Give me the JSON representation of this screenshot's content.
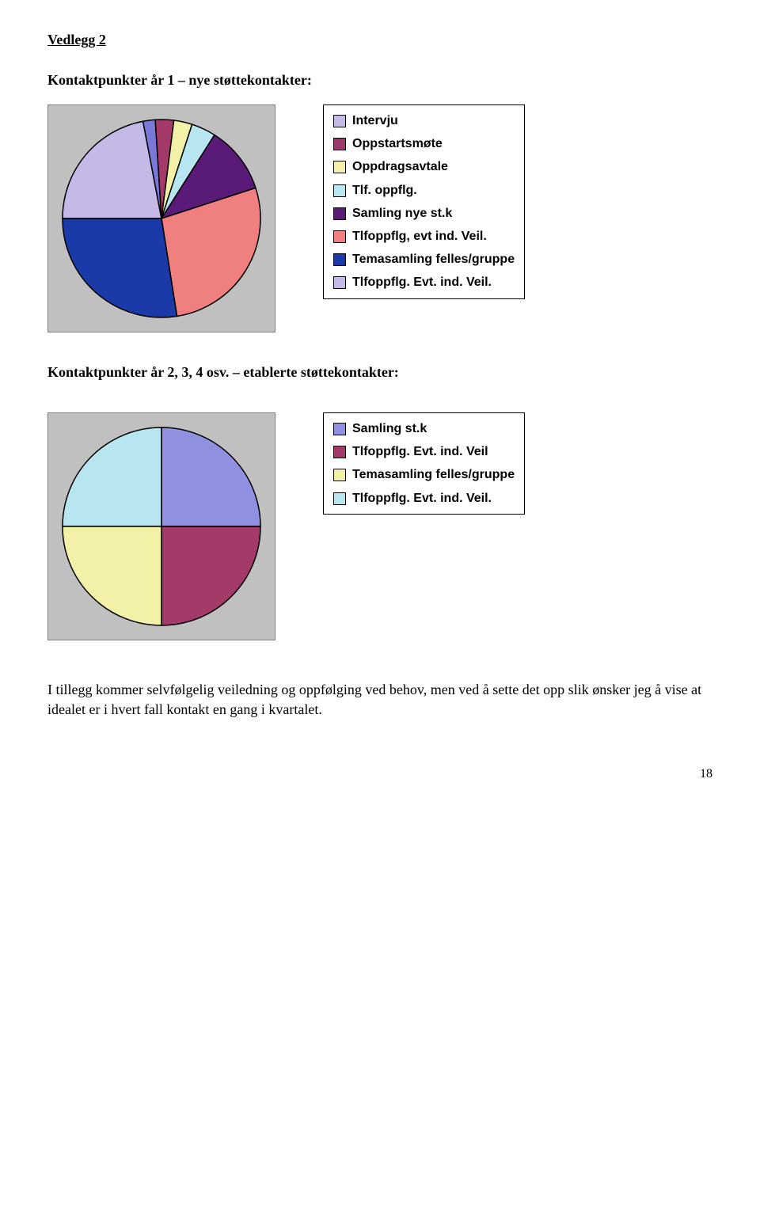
{
  "title": "Vedlegg 2",
  "section1": {
    "heading": "Kontaktpunkter år 1 – nye støttekontakter:",
    "chart": {
      "type": "pie",
      "background_color": "#c0c0c0",
      "border_color": "#808080",
      "slice_border": "#000000",
      "slices": [
        {
          "label": "Intervju",
          "value": 22,
          "color": "#c5b9e8"
        },
        {
          "label": "Oppstartsmøte",
          "value": 2,
          "color": "#7878d6"
        },
        {
          "label": "Oppdragsavtale",
          "value": 3,
          "color": "#a33a6a"
        },
        {
          "label": "Tlf. oppflg.",
          "value": 3,
          "color": "#f3f0a8"
        },
        {
          "label": "Samling nye st.k",
          "value": 4,
          "color": "#b8e6f0"
        },
        {
          "label": "Tlfoppflg, evt ind. Veil.",
          "value": 11,
          "color": "#5a1a78"
        },
        {
          "label": "Temasamling felles/gruppe",
          "value": 27.5,
          "color": "#f08080"
        },
        {
          "label": "Tlfoppflg. Evt. ind. Veil.",
          "value": 27.5,
          "color": "#1a3aa8"
        }
      ]
    },
    "legend_swatch_colors": {
      "Intervju": "#c5b9e8",
      "Oppstartsmøte": "#9a3a6a",
      "Oppdragsavtale": "#f3f0a8",
      "Tlf. oppflg.": "#b8e6f0",
      "Samling nye st.k": "#5a1a78",
      "Tlfoppflg, evt ind. Veil.": "#f08080",
      "Temasamling felles/gruppe": "#1a3aa8",
      "Tlfoppflg. Evt. ind. Veil.": "#c5b9e8"
    }
  },
  "section2": {
    "heading": "Kontaktpunkter år 2, 3, 4 osv. – etablerte støttekontakter:",
    "chart": {
      "type": "pie",
      "background_color": "#c0c0c0",
      "border_color": "#808080",
      "slice_border": "#000000",
      "slices": [
        {
          "label": "Samling st.k",
          "value": 25,
          "color": "#b8e6f0"
        },
        {
          "label": "Tlfoppflg. Evt. ind. Veil",
          "value": 25,
          "color": "#9090e0"
        },
        {
          "label": "Temasamling felles/gruppe",
          "value": 25,
          "color": "#a33a6a"
        },
        {
          "label": "Tlfoppflg. Evt. ind. Veil.",
          "value": 25,
          "color": "#f3f0a8"
        }
      ]
    },
    "legend_swatch_colors": {
      "Samling st.k": "#9090e0",
      "Tlfoppflg. Evt. ind. Veil": "#a33a6a",
      "Temasamling felles/gruppe": "#f3f0a8",
      "Tlfoppflg. Evt. ind. Veil.": "#b8e6f0"
    }
  },
  "paragraph": "I tillegg kommer selvfølgelig veiledning og oppfølging ved behov, men ved å sette det opp slik ønsker jeg å vise at idealet er i hvert fall kontakt en gang i kvartalet.",
  "page_number": "18"
}
